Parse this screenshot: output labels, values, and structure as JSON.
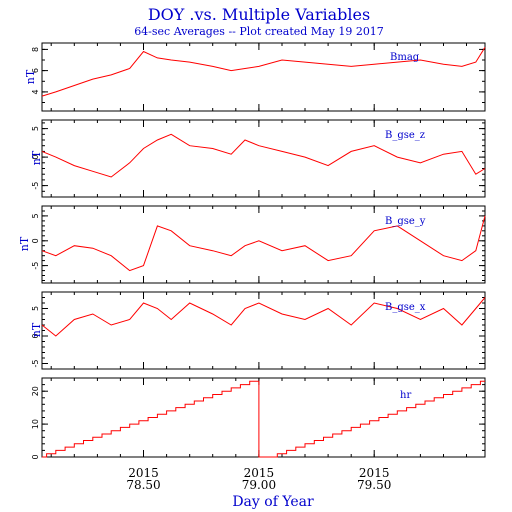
{
  "title": "DOY .vs. Multiple Variables",
  "subtitle": "64-sec Averages -- Plot created May 19 2017",
  "chart_data": [
    {
      "type": "line",
      "name": "Bmag",
      "ylabel": "nT",
      "ylim": [
        2.2,
        8.6
      ],
      "yticks": [
        4,
        6,
        8
      ],
      "xlim": [
        78.06,
        79.98
      ],
      "color": "#ff0000",
      "x": [
        78.06,
        78.12,
        78.2,
        78.28,
        78.36,
        78.44,
        78.5,
        78.56,
        78.62,
        78.7,
        78.8,
        78.88,
        78.94,
        79.0,
        79.1,
        79.2,
        79.3,
        79.4,
        79.5,
        79.6,
        79.7,
        79.8,
        79.88,
        79.94,
        79.98
      ],
      "values": [
        3.6,
        4.0,
        4.6,
        5.2,
        5.6,
        6.2,
        7.8,
        7.2,
        7.0,
        6.8,
        6.4,
        6.0,
        6.2,
        6.4,
        7.0,
        6.8,
        6.6,
        6.4,
        6.6,
        6.8,
        7.0,
        6.6,
        6.4,
        6.8,
        8.2
      ]
    },
    {
      "type": "line",
      "name": "B_gse_z",
      "ylabel": "nT",
      "ylim": [
        -7.0,
        6.5
      ],
      "yticks": [
        -5,
        0,
        5
      ],
      "xlim": [
        78.06,
        79.98
      ],
      "color": "#ff0000",
      "x": [
        78.06,
        78.12,
        78.2,
        78.28,
        78.36,
        78.44,
        78.5,
        78.56,
        78.62,
        78.7,
        78.8,
        78.88,
        78.94,
        79.0,
        79.1,
        79.2,
        79.3,
        79.4,
        79.5,
        79.6,
        79.7,
        79.8,
        79.88,
        79.94,
        79.98
      ],
      "values": [
        1.0,
        0.0,
        -1.5,
        -2.5,
        -3.5,
        -1.0,
        1.5,
        3.0,
        4.0,
        2.0,
        1.5,
        0.5,
        3.0,
        2.0,
        1.0,
        0.0,
        -1.5,
        1.0,
        2.0,
        0.0,
        -1.0,
        0.5,
        1.0,
        -3.0,
        -2.0
      ]
    },
    {
      "type": "line",
      "name": "B_gse_y",
      "ylabel": "nT",
      "ylim": [
        -8.5,
        7.0
      ],
      "yticks": [
        -5,
        0,
        5
      ],
      "xlim": [
        78.06,
        79.98
      ],
      "color": "#ff0000",
      "x": [
        78.06,
        78.12,
        78.2,
        78.28,
        78.36,
        78.44,
        78.5,
        78.56,
        78.62,
        78.7,
        78.8,
        78.88,
        78.94,
        79.0,
        79.1,
        79.2,
        79.3,
        79.4,
        79.5,
        79.6,
        79.7,
        79.8,
        79.88,
        79.94,
        79.98
      ],
      "values": [
        -2.0,
        -3.0,
        -1.0,
        -1.5,
        -3.0,
        -6.0,
        -5.0,
        3.0,
        2.0,
        -1.0,
        -2.0,
        -3.0,
        -1.0,
        0.0,
        -2.0,
        -1.0,
        -4.0,
        -3.0,
        2.0,
        3.0,
        0.0,
        -3.0,
        -4.0,
        -2.0,
        5.0
      ]
    },
    {
      "type": "line",
      "name": "B_gse_x",
      "ylabel": "nT",
      "ylim": [
        -6.0,
        8.0
      ],
      "yticks": [
        -5,
        0,
        5
      ],
      "xlim": [
        78.06,
        79.98
      ],
      "color": "#ff0000",
      "x": [
        78.06,
        78.12,
        78.2,
        78.28,
        78.36,
        78.44,
        78.5,
        78.56,
        78.62,
        78.7,
        78.8,
        78.88,
        78.94,
        79.0,
        79.1,
        79.2,
        79.3,
        79.4,
        79.5,
        79.6,
        79.7,
        79.8,
        79.88,
        79.94,
        79.98
      ],
      "values": [
        2.0,
        0.0,
        3.0,
        4.0,
        2.0,
        3.0,
        6.0,
        5.0,
        3.0,
        6.0,
        4.0,
        2.0,
        5.0,
        6.0,
        4.0,
        3.0,
        5.0,
        2.0,
        6.0,
        5.0,
        3.0,
        5.0,
        2.0,
        5.0,
        7.0
      ]
    },
    {
      "type": "line",
      "name": "hr",
      "ylabel": "",
      "ylim": [
        0,
        24
      ],
      "yticks": [
        0,
        10,
        20
      ],
      "xlim": [
        78.06,
        79.98
      ],
      "color": "#ff0000",
      "step": true,
      "x": [
        78.06,
        78.08,
        78.12,
        78.16,
        78.2,
        78.24,
        78.28,
        78.32,
        78.36,
        78.4,
        78.44,
        78.48,
        78.52,
        78.56,
        78.6,
        78.64,
        78.68,
        78.72,
        78.76,
        78.8,
        78.84,
        78.88,
        78.92,
        78.96,
        78.9999,
        79.0,
        79.04,
        79.08,
        79.12,
        79.16,
        79.2,
        79.24,
        79.28,
        79.32,
        79.36,
        79.4,
        79.44,
        79.48,
        79.52,
        79.56,
        79.6,
        79.64,
        79.68,
        79.72,
        79.76,
        79.8,
        79.84,
        79.88,
        79.92,
        79.96,
        79.98
      ],
      "values": [
        0,
        1,
        2,
        3,
        4,
        5,
        6,
        7,
        8,
        9,
        10,
        11,
        12,
        13,
        14,
        15,
        16,
        17,
        18,
        19,
        20,
        21,
        22,
        23,
        23,
        0,
        0,
        1,
        2,
        3,
        4,
        5,
        6,
        7,
        8,
        9,
        10,
        11,
        12,
        13,
        14,
        15,
        16,
        17,
        18,
        19,
        20,
        21,
        22,
        23,
        23
      ]
    }
  ],
  "x_axis": {
    "label": "Day of Year",
    "ticks": [
      {
        "value": 78.5,
        "year": "2015",
        "doy": "78.50"
      },
      {
        "value": 79.0,
        "year": "2015",
        "doy": "79.00"
      },
      {
        "value": 79.5,
        "year": "2015",
        "doy": "79.50"
      }
    ]
  }
}
